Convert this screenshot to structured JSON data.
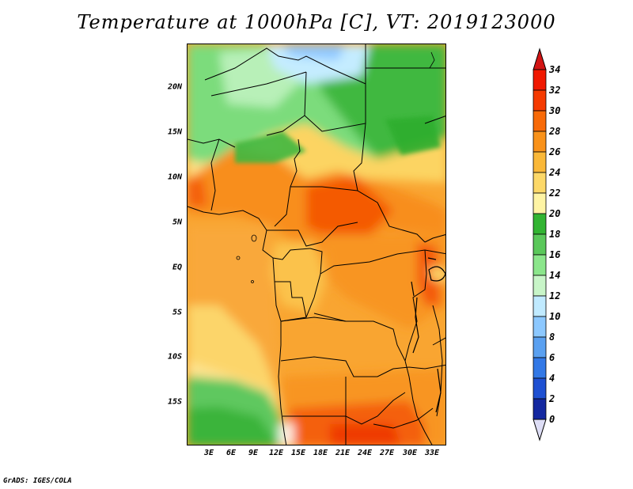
{
  "title": "Temperature at 1000hPa [C], VT: 2019123000",
  "credit": "GrADS: IGES/COLA",
  "x_ticks": [
    "3E",
    "6E",
    "9E",
    "12E",
    "15E",
    "18E",
    "21E",
    "24E",
    "27E",
    "30E",
    "33E"
  ],
  "y_ticks": [
    "20N",
    "15N",
    "10N",
    "5N",
    "EQ",
    "5S",
    "10S",
    "15S"
  ],
  "colorbar": {
    "labels": [
      "34",
      "32",
      "30",
      "28",
      "26",
      "24",
      "22",
      "20",
      "18",
      "16",
      "14",
      "12",
      "10",
      "8",
      "6",
      "4",
      "2",
      "0"
    ],
    "colors": [
      "#f01800",
      "#f53a00",
      "#f86a08",
      "#f9921a",
      "#fab838",
      "#fcd868",
      "#fef4a4",
      "#32b432",
      "#5ac85a",
      "#8be68b",
      "#c8f5c8",
      "#c0eaff",
      "#8cc8ff",
      "#5aa0f0",
      "#3278e6",
      "#1e50d2",
      "#1428a0",
      "#0a0a6e"
    ],
    "over_color": "#d21414",
    "under_color": "#ddddf5"
  }
}
